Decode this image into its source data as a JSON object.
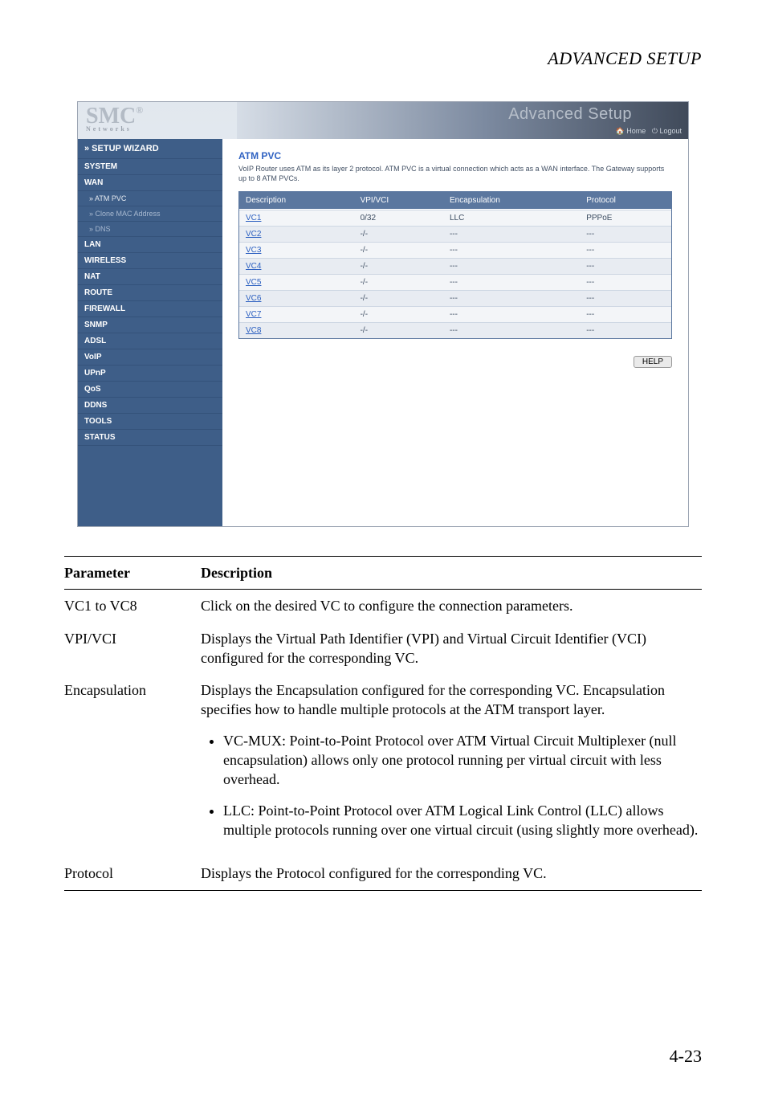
{
  "page_header": "ADVANCED SETUP",
  "page_number": "4-23",
  "screenshot": {
    "logo_main": "SMC",
    "logo_reg": "®",
    "logo_sub": "Networks",
    "banner_title": "Advanced Setup",
    "banner_home": "Home",
    "banner_logout": "Logout",
    "sidebar": {
      "wizard": "» SETUP WIZARD",
      "items": [
        {
          "label": "SYSTEM",
          "cls": "cat"
        },
        {
          "label": "WAN",
          "cls": "cat"
        },
        {
          "label": "» ATM PVC",
          "cls": "sub active"
        },
        {
          "label": "» Clone MAC Address",
          "cls": "sub"
        },
        {
          "label": "» DNS",
          "cls": "sub"
        },
        {
          "label": "LAN",
          "cls": "cat"
        },
        {
          "label": "WIRELESS",
          "cls": "cat"
        },
        {
          "label": "NAT",
          "cls": "cat"
        },
        {
          "label": "ROUTE",
          "cls": "cat"
        },
        {
          "label": "FIREWALL",
          "cls": "cat"
        },
        {
          "label": "SNMP",
          "cls": "cat"
        },
        {
          "label": "ADSL",
          "cls": "cat"
        },
        {
          "label": "VoIP",
          "cls": "cat"
        },
        {
          "label": "UPnP",
          "cls": "cat"
        },
        {
          "label": "QoS",
          "cls": "cat"
        },
        {
          "label": "DDNS",
          "cls": "cat"
        },
        {
          "label": "TOOLS",
          "cls": "cat"
        },
        {
          "label": "STATUS",
          "cls": "cat"
        }
      ]
    },
    "main": {
      "title": "ATM PVC",
      "desc": "VoIP Router uses ATM as its layer 2 protocol. ATM PVC is a virtual connection which acts as a WAN interface. The Gateway supports up to 8 ATM PVCs.",
      "table": {
        "head": [
          "Description",
          "VPI/VCI",
          "Encapsulation",
          "Protocol"
        ],
        "rows": [
          [
            "VC1",
            "0/32",
            "LLC",
            "PPPoE"
          ],
          [
            "VC2",
            "-/-",
            "---",
            "---"
          ],
          [
            "VC3",
            "-/-",
            "---",
            "---"
          ],
          [
            "VC4",
            "-/-",
            "---",
            "---"
          ],
          [
            "VC5",
            "-/-",
            "---",
            "---"
          ],
          [
            "VC6",
            "-/-",
            "---",
            "---"
          ],
          [
            "VC7",
            "-/-",
            "---",
            "---"
          ],
          [
            "VC8",
            "-/-",
            "---",
            "---"
          ]
        ]
      },
      "help_btn": "HELP"
    }
  },
  "param": {
    "head_label": "Parameter",
    "head_desc": "Description",
    "rows": [
      {
        "label": "VC1 to VC8",
        "desc": "Click on the desired VC to configure the connection parameters."
      },
      {
        "label": "VPI/VCI",
        "desc": "Displays the Virtual Path Identifier (VPI) and Virtual Circuit Identifier (VCI) configured for the corresponding VC."
      },
      {
        "label": "Encapsulation",
        "desc": "Displays the Encapsulation configured for the corresponding VC. Encapsulation specifies how to handle multiple protocols at the ATM transport layer."
      },
      {
        "label": "Protocol",
        "desc": "Displays the Protocol configured for the corresponding VC."
      }
    ],
    "bullets": [
      "VC-MUX: Point-to-Point Protocol over ATM Virtual Circuit Multiplexer (null encapsulation) allows only one protocol running per virtual circuit with less overhead.",
      "LLC: Point-to-Point Protocol over ATM Logical Link Control (LLC) allows multiple protocols running over one virtual circuit (using slightly more overhead)."
    ]
  }
}
